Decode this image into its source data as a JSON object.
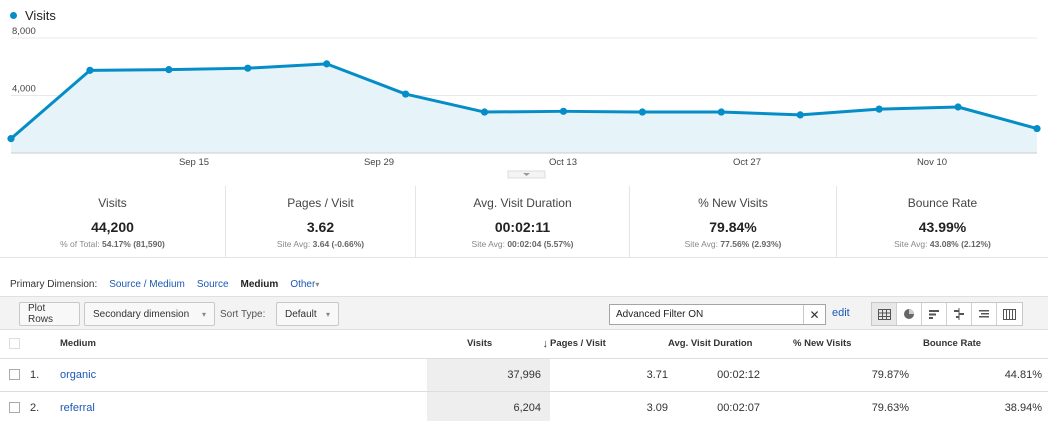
{
  "chart": {
    "legend_label": "Visits",
    "line_color": "#058dc7",
    "fill_color": "#e6f4fa",
    "y_tick_labels": [
      "8,000",
      "4,000"
    ],
    "x_tick_labels": [
      "Sep 15",
      "Sep 29",
      "Oct 13",
      "Oct 27",
      "Nov 10"
    ]
  },
  "chart_data": {
    "type": "area",
    "series": [
      {
        "name": "Visits",
        "values": [
          1000,
          5750,
          5800,
          5900,
          6200,
          4100,
          2850,
          2900,
          2850,
          2850,
          2650,
          3050,
          3200,
          1700
        ]
      }
    ],
    "x_labels_shown": [
      "Sep 15",
      "Sep 29",
      "Oct 13",
      "Oct 27",
      "Nov 10"
    ],
    "ylim": [
      0,
      8000
    ],
    "y_ticks": [
      4000,
      8000
    ],
    "grid": true
  },
  "scorecards": [
    {
      "title": "Visits",
      "value": "44,200",
      "sub_label": "% of Total:",
      "sub_value": "54.17% (81,590)"
    },
    {
      "title": "Pages / Visit",
      "value": "3.62",
      "sub_label": "Site Avg:",
      "sub_value": "3.64 (-0.66%)"
    },
    {
      "title": "Avg. Visit Duration",
      "value": "00:02:11",
      "sub_label": "Site Avg:",
      "sub_value": "00:02:04 (5.57%)"
    },
    {
      "title": "% New Visits",
      "value": "79.84%",
      "sub_label": "Site Avg:",
      "sub_value": "77.56% (2.93%)"
    },
    {
      "title": "Bounce Rate",
      "value": "43.99%",
      "sub_label": "Site Avg:",
      "sub_value": "43.08% (2.12%)"
    }
  ],
  "primary_dimension": {
    "label": "Primary Dimension:",
    "options": [
      "Source / Medium",
      "Source"
    ],
    "selected": "Medium",
    "other": "Other"
  },
  "toolbar": {
    "plot_rows": "Plot Rows",
    "secondary_dimension": "Secondary dimension",
    "sort_type_label": "Sort Type:",
    "sort_type_value": "Default",
    "filter_value": "Advanced Filter ON",
    "edit": "edit"
  },
  "table": {
    "headers": {
      "medium": "Medium",
      "visits": "Visits",
      "pages_visit": "Pages / Visit",
      "avg_duration": "Avg. Visit Duration",
      "new_visits": "% New Visits",
      "bounce_rate": "Bounce Rate"
    },
    "sort_indicator": "↓",
    "rows": [
      {
        "rank": "1.",
        "medium": "organic",
        "visits": "37,996",
        "pages_visit": "3.71",
        "avg_duration": "00:02:12",
        "new_visits": "79.87%",
        "bounce_rate": "44.81%"
      },
      {
        "rank": "2.",
        "medium": "referral",
        "visits": "6,204",
        "pages_visit": "3.09",
        "avg_duration": "00:02:07",
        "new_visits": "79.63%",
        "bounce_rate": "38.94%"
      }
    ]
  }
}
